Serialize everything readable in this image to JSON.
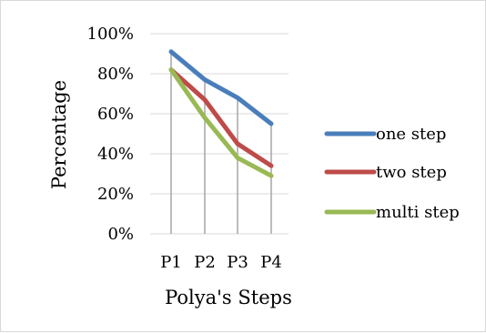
{
  "chart_data": {
    "type": "line",
    "title": "",
    "xlabel": "Polya's Steps",
    "ylabel": "Percentage",
    "categories": [
      "P1",
      "P2",
      "P3",
      "P4"
    ],
    "ylim": [
      0,
      100
    ],
    "yticks": [
      0,
      20,
      40,
      60,
      80,
      100
    ],
    "ytick_labels": [
      "0%",
      "20%",
      "40%",
      "60%",
      "80%",
      "100%"
    ],
    "grid": true,
    "legend": {
      "position": "right"
    },
    "drop_lines": true,
    "series": [
      {
        "name": "one step",
        "color": "#4a7ebb",
        "values": [
          91,
          77,
          68,
          55
        ]
      },
      {
        "name": "two step",
        "color": "#be4b48",
        "values": [
          82,
          67,
          45,
          34
        ]
      },
      {
        "name": "multi step",
        "color": "#98b954",
        "values": [
          82,
          58,
          38,
          29
        ]
      }
    ]
  }
}
